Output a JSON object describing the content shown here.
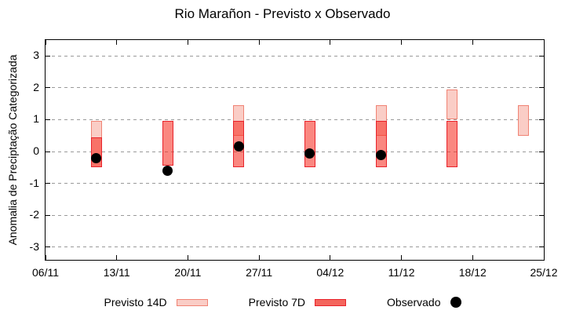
{
  "title": "Rio Marañon - Previsto x Observado",
  "y_axis": {
    "label": "Anomalia de Preciptação Categorizada",
    "ticks": [
      3,
      2,
      1,
      0,
      -1,
      -2,
      -3
    ]
  },
  "x_axis": {
    "ticks": [
      "06/11",
      "13/11",
      "20/11",
      "27/11",
      "04/12",
      "11/12",
      "18/12",
      "25/12"
    ]
  },
  "legend": {
    "items": [
      {
        "label": "Previsto 14D",
        "marker": "box-light-pink"
      },
      {
        "label": "Previsto 7D",
        "marker": "box-red"
      },
      {
        "label": "Observado",
        "marker": "black-dot"
      }
    ],
    "position": "bottom-center"
  },
  "colors": {
    "p14_fill": "#FACDC6",
    "p14_border": "#F08374",
    "p7_fill": "rgba(246,48,36,0.58)",
    "p7_border": "#E8232B",
    "p7_legend_fill": "#F4665D",
    "observado": "#000000",
    "grid": "#9A9A9A",
    "axis": "#000000"
  },
  "chart_data": {
    "type": "bar",
    "subtype": "floating-range-bars-with-points",
    "title": "Rio Marañon - Previsto x Observado",
    "xlabel": "",
    "ylabel": "Anomalia de Preciptação Categorizada",
    "ylim": [
      -3.45,
      3.5
    ],
    "yticks": [
      -3,
      -2,
      -1,
      0,
      1,
      2,
      3
    ],
    "xticks": [
      "06/11",
      "13/11",
      "20/11",
      "27/11",
      "04/12",
      "11/12",
      "18/12",
      "25/12"
    ],
    "xtick_days": [
      0,
      7,
      14,
      21,
      28,
      35,
      42,
      49
    ],
    "grid": "horizontal-dashed",
    "legend_position": "bottom-center",
    "x": [
      "11/11",
      "18/11",
      "25/11",
      "02/12",
      "09/12",
      "16/12",
      "23/12"
    ],
    "x_days": [
      5,
      12,
      19,
      26,
      33,
      40,
      47
    ],
    "series": [
      {
        "name": "Previsto 14D",
        "kind": "range-bar",
        "ranges": [
          [
            -0.5,
            0.95
          ],
          null,
          [
            0.5,
            1.45
          ],
          null,
          [
            0.5,
            1.45
          ],
          [
            1.0,
            1.95
          ],
          [
            0.5,
            1.45
          ]
        ]
      },
      {
        "name": "Previsto 7D",
        "kind": "range-bar",
        "ranges": [
          [
            -0.5,
            0.45
          ],
          [
            -0.45,
            0.95
          ],
          [
            -0.5,
            0.95
          ],
          [
            -0.5,
            0.95
          ],
          [
            -0.5,
            0.95
          ],
          [
            -0.5,
            0.95
          ],
          null
        ]
      },
      {
        "name": "Observado",
        "kind": "point",
        "values": [
          -0.2,
          -0.6,
          0.15,
          -0.05,
          -0.1,
          null,
          null
        ]
      }
    ]
  }
}
